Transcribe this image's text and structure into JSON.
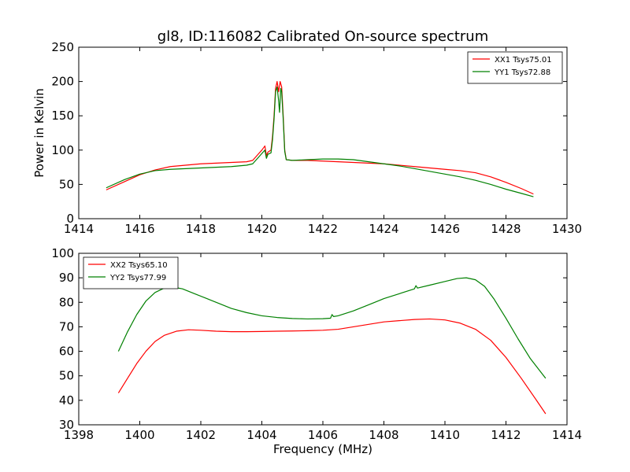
{
  "figure": {
    "title": "gl8, ID:116082 Calibrated On-source spectrum",
    "xlabel": "Frequency (MHz)"
  },
  "chart_data": [
    {
      "type": "line",
      "ylabel": "Power in Kelvin",
      "xlabel": "",
      "xlim": [
        1414,
        1430
      ],
      "ylim": [
        0,
        250
      ],
      "xticks": [
        1414,
        1416,
        1418,
        1420,
        1422,
        1424,
        1426,
        1428,
        1430
      ],
      "yticks": [
        0,
        50,
        100,
        150,
        200,
        250
      ],
      "grid": false,
      "legend_position": "top-right",
      "series": [
        {
          "name": "XX1 Tsys75.01",
          "color": "#ff0000",
          "x": [
            1414.9,
            1415.5,
            1416.0,
            1416.5,
            1417.0,
            1417.5,
            1418.0,
            1418.5,
            1419.0,
            1419.5,
            1419.7,
            1419.8,
            1419.9,
            1420.0,
            1420.1,
            1420.15,
            1420.2,
            1420.3,
            1420.35,
            1420.4,
            1420.45,
            1420.5,
            1420.55,
            1420.6,
            1420.65,
            1420.7,
            1420.75,
            1420.8,
            1421.0,
            1421.5,
            1422.0,
            1422.5,
            1423.0,
            1423.5,
            1424.0,
            1424.5,
            1425.0,
            1425.5,
            1426.0,
            1426.5,
            1427.0,
            1427.5,
            1428.0,
            1428.5,
            1428.9
          ],
          "y": [
            42,
            54,
            64,
            71,
            76,
            78,
            80,
            81,
            82,
            83,
            85,
            90,
            95,
            100,
            106,
            92,
            97,
            100,
            120,
            150,
            190,
            200,
            185,
            200,
            192,
            150,
            100,
            86,
            85,
            85,
            84,
            83,
            82,
            81,
            80,
            78,
            76,
            74,
            72,
            70,
            67,
            61,
            53,
            44,
            36
          ]
        },
        {
          "name": "YY1 Tsys72.88",
          "color": "#008000",
          "x": [
            1414.9,
            1415.5,
            1416.0,
            1416.5,
            1417.0,
            1417.5,
            1418.0,
            1418.5,
            1419.0,
            1419.5,
            1419.7,
            1419.8,
            1419.9,
            1420.0,
            1420.1,
            1420.15,
            1420.2,
            1420.3,
            1420.35,
            1420.4,
            1420.45,
            1420.5,
            1420.55,
            1420.58,
            1420.62,
            1420.65,
            1420.7,
            1420.75,
            1420.8,
            1421.0,
            1421.5,
            1422.0,
            1422.5,
            1423.0,
            1423.5,
            1424.0,
            1424.5,
            1425.0,
            1425.5,
            1426.0,
            1426.5,
            1427.0,
            1427.5,
            1428.0,
            1428.5,
            1428.9
          ],
          "y": [
            45,
            57,
            65,
            70,
            72,
            73,
            74,
            75,
            76,
            78,
            80,
            85,
            90,
            95,
            100,
            88,
            94,
            96,
            115,
            145,
            185,
            192,
            172,
            155,
            190,
            185,
            145,
            98,
            86,
            85,
            86,
            87,
            87,
            86,
            83,
            80,
            77,
            73,
            69,
            65,
            61,
            56,
            50,
            43,
            37,
            32
          ]
        }
      ]
    },
    {
      "type": "line",
      "ylabel": "",
      "xlabel": "Frequency (MHz)",
      "xlim": [
        1398,
        1414
      ],
      "ylim": [
        30,
        100
      ],
      "xticks": [
        1398,
        1400,
        1402,
        1404,
        1406,
        1408,
        1410,
        1412,
        1414
      ],
      "yticks": [
        30,
        40,
        50,
        60,
        70,
        80,
        90,
        100
      ],
      "grid": false,
      "legend_position": "top-left",
      "series": [
        {
          "name": "XX2 Tsys65.10",
          "color": "#ff0000",
          "x": [
            1399.3,
            1399.6,
            1399.9,
            1400.2,
            1400.5,
            1400.8,
            1401.2,
            1401.6,
            1402.0,
            1402.5,
            1403.0,
            1403.5,
            1404.0,
            1404.5,
            1405.0,
            1405.5,
            1406.0,
            1406.5,
            1407.0,
            1407.5,
            1408.0,
            1408.5,
            1409.0,
            1409.5,
            1410.0,
            1410.5,
            1411.0,
            1411.5,
            1412.0,
            1412.5,
            1413.0,
            1413.3
          ],
          "y": [
            43,
            49,
            55,
            60,
            64,
            66.5,
            68.2,
            68.8,
            68.6,
            68.2,
            68.0,
            68.0,
            68.1,
            68.2,
            68.3,
            68.4,
            68.6,
            69.0,
            70.0,
            71.0,
            72.0,
            72.5,
            73.0,
            73.2,
            72.8,
            71.5,
            69.0,
            64.5,
            57.5,
            49.0,
            40.0,
            34.5
          ]
        },
        {
          "name": "YY2 Tsys77.99",
          "color": "#008000",
          "x": [
            1399.3,
            1399.6,
            1399.9,
            1400.2,
            1400.5,
            1400.8,
            1401.1,
            1401.4,
            1401.8,
            1402.2,
            1402.6,
            1403.0,
            1403.5,
            1404.0,
            1404.5,
            1405.0,
            1405.5,
            1406.0,
            1406.25,
            1406.3,
            1406.35,
            1406.5,
            1407.0,
            1407.5,
            1408.0,
            1408.5,
            1409.0,
            1409.05,
            1409.1,
            1409.5,
            1410.0,
            1410.4,
            1410.7,
            1411.0,
            1411.3,
            1411.6,
            1412.0,
            1412.4,
            1412.8,
            1413.3
          ],
          "y": [
            60,
            68,
            75,
            80.5,
            84,
            85.8,
            86.2,
            85.5,
            83.5,
            81.5,
            79.5,
            77.5,
            75.8,
            74.5,
            73.8,
            73.4,
            73.2,
            73.3,
            73.5,
            75,
            74.2,
            74.5,
            76.5,
            79,
            81.5,
            83.5,
            85.5,
            86.8,
            85.8,
            87.0,
            88.5,
            89.7,
            90.0,
            89.2,
            86.5,
            81.5,
            73.5,
            65,
            57,
            49
          ]
        }
      ]
    }
  ]
}
